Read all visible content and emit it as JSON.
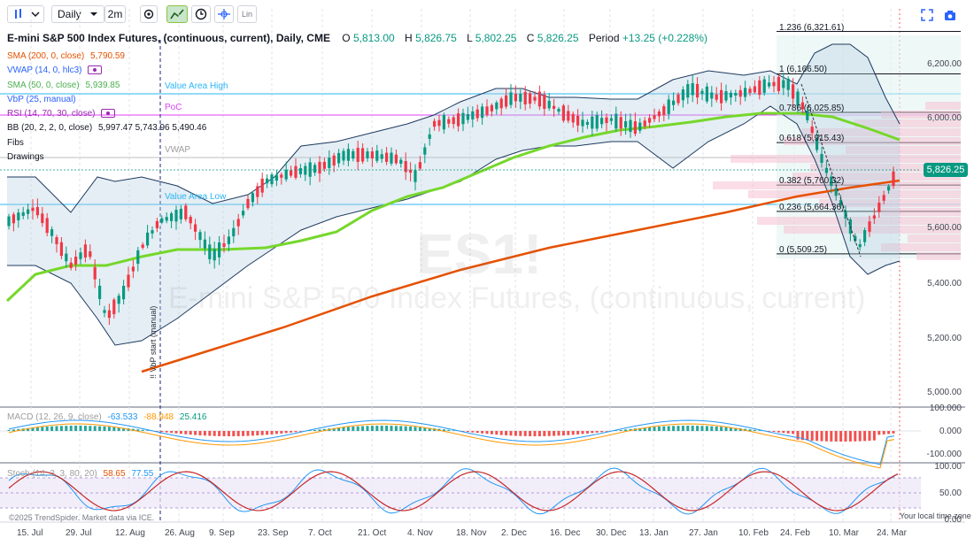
{
  "toolbar": {
    "chart_type_icon": "bars-icon",
    "interval": "Daily",
    "compare_label": "2m",
    "log_label": "Lin"
  },
  "header": {
    "title": "E-mini S&P 500 Index Futures, (continuous, current), Daily, CME",
    "open_label": "O",
    "open": "5,813.00",
    "high_label": "H",
    "high": "5,826.75",
    "low_label": "L",
    "low": "5,802.25",
    "close_label": "C",
    "close": "5,826.25",
    "period_label": "Period",
    "period_change": "+13.25 (+0.228%)"
  },
  "indicators": [
    {
      "name": "SMA (200, 0, close)",
      "value": "5,790.59",
      "color": "#e65100"
    },
    {
      "name": "VWAP (14, 0, hlc3)",
      "value": "",
      "color": "#2962ff"
    },
    {
      "name": "SMA (50, 0, close)",
      "value": "5,939.85",
      "color": "#4caf50"
    },
    {
      "name": "VbP (25, manual)",
      "value": "",
      "color": "#2962ff"
    },
    {
      "name": "RSI (14, 70, 30, close)",
      "value": "",
      "color": "#9c27b0"
    },
    {
      "name": "BB (20, 2, 2, 0, close)",
      "value": "5,997.47  5,743.96  5,490.46",
      "color": "#131722"
    },
    {
      "name": "Fibs",
      "value": "",
      "color": "#131722"
    },
    {
      "name": "Drawings",
      "value": "",
      "color": "#131722"
    }
  ],
  "overlays": {
    "value_area_high": "Value Area High",
    "poc": "PoC",
    "vwap": "VWAP",
    "value_area_low": "Value Area Low",
    "vbp_start": "!! VbP start (manual)",
    "watermark_symbol": "ES1!",
    "watermark_name": "E-mini S&P 500 Index Futures, (continuous, current)"
  },
  "fibs": [
    {
      "label": "1.236 (6,321.61)",
      "price": 6321.61
    },
    {
      "label": "1 (6,166.50)",
      "price": 6166.5
    },
    {
      "label": "0.786 (6,025.85)",
      "price": 6025.85
    },
    {
      "label": "0.618 (5,915.43)",
      "price": 5915.43
    },
    {
      "label": "0.382 (5,760.32)",
      "price": 5760.32
    },
    {
      "label": "0.236 (5,664.36)",
      "price": 5664.36
    },
    {
      "label": "0 (5,509.25)",
      "price": 5509.25
    }
  ],
  "price_axis": [
    "6,200.00",
    "6,000.00",
    "5,600.00",
    "5,400.00",
    "5,200.00",
    "5,000.00"
  ],
  "last_price": "5,826.25",
  "macd": {
    "name": "MACD (12, 26, 9, close)",
    "values": [
      "-63.533",
      "-88.948",
      "25.416"
    ],
    "axis": [
      "100.000",
      "0.000",
      "-100.000"
    ]
  },
  "stoch": {
    "name": "Stoch (14, 3, 3, 80, 20)",
    "values": [
      "58.65",
      "77.55"
    ],
    "axis": [
      "100.00",
      "50.00",
      "0.00"
    ]
  },
  "time_axis": [
    "15. Jul",
    "29. Jul",
    "12. Aug",
    "26. Aug",
    "9. Sep",
    "23. Sep",
    "7. Oct",
    "21. Oct",
    "4. Nov",
    "18. Nov",
    "2. Dec",
    "16. Dec",
    "30. Dec",
    "13. Jan",
    "27. Jan",
    "10. Feb",
    "24. Feb",
    "10. Mar",
    "24. Mar"
  ],
  "footer": {
    "copyright": "©2025 TrendSpider. Market data via ICE.",
    "timezone": "Your local time zone"
  },
  "colors": {
    "up": "#089981",
    "down": "#f23645",
    "sma200": "#e65100",
    "sma50": "#76d72b",
    "bb": "#1e3a5f",
    "value_area": "#29b6f6",
    "poc": "#e040fb",
    "macd": "#2196f3",
    "signal": "#ff9800",
    "stoch_k": "#2196f3",
    "stoch_d": "#c62828"
  },
  "chart_data": {
    "type": "candlestick",
    "symbol": "ES1!",
    "interval": "Daily",
    "sma200": 5790.59,
    "sma50": 5939.85,
    "bb": [
      5997.47,
      5743.96,
      5490.46
    ],
    "last": {
      "open": 5813.0,
      "high": 5826.75,
      "low": 5802.25,
      "close": 5826.25
    }
  }
}
